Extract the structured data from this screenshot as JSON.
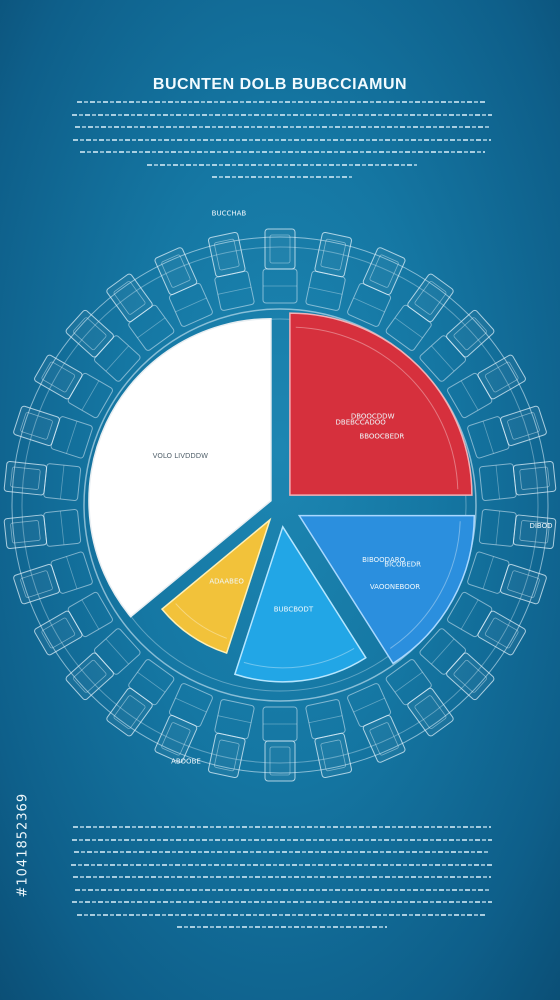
{
  "title": "BUCNTEN DOLB BUBCCIAMUN",
  "stock_id": "#1041852369",
  "colors": {
    "background": "#1577a3",
    "white_slice": "#ffffff",
    "red_slice": "#d6303d",
    "blue_slice": "#2b8fde",
    "cyan_slice": "#22a6e6",
    "yellow_slice": "#f2c23a"
  },
  "chart_data": {
    "type": "pie",
    "title": "BUCNTEN DOLB BUBCCIAMUN",
    "slices": [
      {
        "label": "VOLO LIVDDDW",
        "value": 36
      },
      {
        "label": "DBEBCCADOO",
        "value": 25
      },
      {
        "label": "BIBOODARO",
        "value": 16
      },
      {
        "label": "BUBCBODT",
        "value": 14
      },
      {
        "label": "ADAABEO",
        "value": 9
      }
    ],
    "annotations": [
      "BUCCHAB",
      "DIBOD",
      "ABOOBE"
    ],
    "inner_notes": [
      "DBOOCDDW",
      "BBOOCBEDR",
      "BICOBEDR",
      "VAOONEBOOR"
    ]
  }
}
